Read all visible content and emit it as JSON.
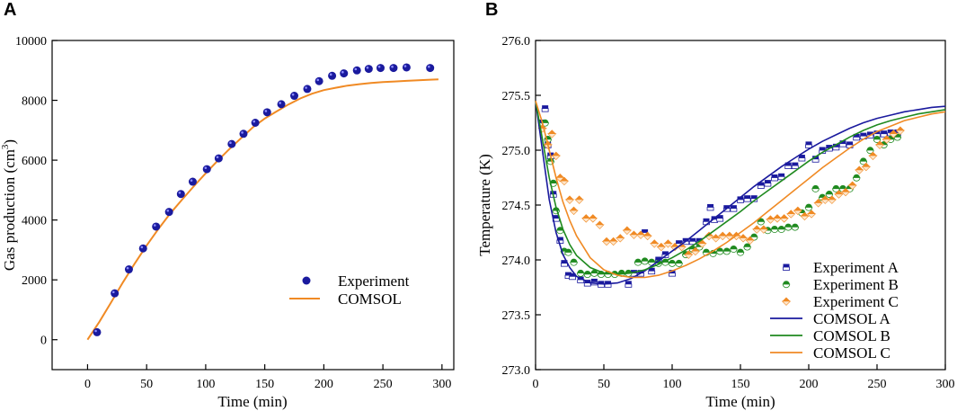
{
  "panels": {
    "A": {
      "letter": "A"
    },
    "B": {
      "letter": "B"
    }
  },
  "chart_data": [
    {
      "id": "A",
      "type": "scatter",
      "title": "",
      "xlabel": "Time (min)",
      "ylabel_main": "Gas production (cm",
      "ylabel_sup": "3",
      "ylabel_end": ")",
      "xlim": [
        -30,
        310
      ],
      "ylim": [
        -1000,
        10000
      ],
      "xticks": [
        0,
        50,
        100,
        150,
        200,
        250,
        300
      ],
      "xtick_labels": [
        "0",
        "50",
        "100",
        "150",
        "200",
        "250",
        "300"
      ],
      "yticks": [
        0,
        2000,
        4000,
        6000,
        8000,
        10000
      ],
      "ytick_labels": [
        "0",
        "2000",
        "4000",
        "6000",
        "8000",
        "10000"
      ],
      "legend_position": "lower-right",
      "series": [
        {
          "name": "Experiment",
          "kind": "points",
          "color": "#1a1a9e",
          "x": [
            8,
            23,
            35,
            47,
            58,
            69,
            79,
            89,
            101,
            111,
            122,
            132,
            142,
            152,
            164,
            175,
            186,
            196,
            207,
            217,
            228,
            238,
            248,
            259,
            270,
            290
          ],
          "y": [
            250,
            1550,
            2350,
            3050,
            3780,
            4270,
            4870,
            5280,
            5700,
            6060,
            6540,
            6880,
            7250,
            7600,
            7870,
            8150,
            8380,
            8640,
            8820,
            8900,
            9000,
            9050,
            9080,
            9080,
            9100,
            9080
          ]
        },
        {
          "name": "COMSOL",
          "kind": "line",
          "color": "#f08a24",
          "x": [
            0,
            10,
            20,
            30,
            40,
            50,
            60,
            70,
            80,
            90,
            100,
            110,
            120,
            130,
            140,
            150,
            160,
            170,
            180,
            190,
            200,
            210,
            220,
            230,
            240,
            250,
            260,
            270,
            280,
            290,
            297
          ],
          "y": [
            0,
            600,
            1250,
            1920,
            2550,
            3150,
            3700,
            4220,
            4680,
            5130,
            5560,
            5980,
            6370,
            6740,
            7100,
            7390,
            7630,
            7860,
            8060,
            8220,
            8340,
            8420,
            8490,
            8540,
            8580,
            8610,
            8630,
            8650,
            8670,
            8690,
            8700
          ]
        }
      ]
    },
    {
      "id": "B",
      "type": "scatter",
      "title": "",
      "xlabel": "Time (min)",
      "ylabel": "Temperature (K)",
      "xlim": [
        0,
        300
      ],
      "ylim": [
        273.0,
        276.0
      ],
      "xticks": [
        0,
        50,
        100,
        150,
        200,
        250,
        300
      ],
      "xtick_labels": [
        "0",
        "50",
        "100",
        "150",
        "200",
        "250",
        "300"
      ],
      "yticks": [
        273.0,
        273.5,
        274.0,
        274.5,
        275.0,
        275.5,
        276.0
      ],
      "ytick_labels": [
        "273.0",
        "273.5",
        "274.0",
        "274.5",
        "275.0",
        "275.5",
        "276.0"
      ],
      "legend_position": "lower-right",
      "series": [
        {
          "name": "Experiment A",
          "kind": "points",
          "marker": "square",
          "color": "#1a1a9e",
          "x": [
            5,
            7,
            9,
            11,
            13,
            15,
            18,
            21,
            24,
            27,
            33,
            38,
            43,
            48,
            53,
            68,
            72,
            77,
            80,
            85,
            90,
            95,
            100,
            105,
            110,
            115,
            120,
            125,
            128,
            131,
            135,
            140,
            145,
            150,
            155,
            160,
            165,
            170,
            175,
            180,
            185,
            190,
            195,
            200,
            205,
            210,
            215,
            220,
            225,
            230,
            235,
            240,
            245,
            250,
            255,
            260,
            265
          ],
          "y": [
            275.25,
            275.38,
            275.05,
            274.95,
            274.6,
            274.38,
            274.18,
            273.97,
            273.86,
            273.85,
            273.82,
            273.79,
            273.8,
            273.78,
            273.78,
            273.78,
            273.88,
            273.88,
            274.25,
            273.9,
            274.0,
            274.05,
            273.88,
            274.15,
            274.17,
            274.17,
            274.17,
            274.35,
            274.48,
            274.37,
            274.38,
            274.47,
            274.47,
            274.55,
            274.56,
            274.56,
            274.68,
            274.7,
            274.75,
            274.76,
            274.86,
            274.86,
            274.93,
            275.05,
            274.92,
            275.0,
            275.02,
            275.03,
            275.06,
            275.05,
            275.12,
            275.13,
            275.14,
            275.15,
            275.15,
            275.16,
            275.16
          ]
        },
        {
          "name": "Experiment B",
          "kind": "points",
          "marker": "circle",
          "color": "#1f8a1f",
          "x": [
            7,
            9,
            11,
            13,
            15,
            18,
            21,
            24,
            28,
            33,
            38,
            43,
            48,
            53,
            58,
            63,
            68,
            75,
            80,
            85,
            90,
            95,
            100,
            105,
            110,
            115,
            120,
            125,
            130,
            135,
            140,
            145,
            150,
            155,
            160,
            165,
            170,
            175,
            180,
            185,
            190,
            195,
            200,
            205,
            210,
            215,
            220,
            225,
            230,
            235,
            240,
            245,
            250,
            255,
            260,
            265
          ],
          "y": [
            275.25,
            275.1,
            274.9,
            274.7,
            274.45,
            274.27,
            274.08,
            274.07,
            273.98,
            273.88,
            273.87,
            273.88,
            273.87,
            273.87,
            273.87,
            273.88,
            273.88,
            273.98,
            273.99,
            273.98,
            273.97,
            273.98,
            273.97,
            273.97,
            274.05,
            274.1,
            274.12,
            274.07,
            274.06,
            274.08,
            274.08,
            274.1,
            274.07,
            274.12,
            274.21,
            274.35,
            274.27,
            274.28,
            274.28,
            274.3,
            274.3,
            274.43,
            274.48,
            274.65,
            274.57,
            274.6,
            274.65,
            274.65,
            274.65,
            274.75,
            274.9,
            275.0,
            275.1,
            275.05,
            275.1,
            275.12
          ]
        },
        {
          "name": "Experiment C",
          "kind": "points",
          "marker": "diamond",
          "color": "#f08a24",
          "x": [
            5,
            9,
            12,
            15,
            18,
            21,
            25,
            28,
            32,
            37,
            42,
            47,
            52,
            57,
            62,
            67,
            72,
            77,
            82,
            87,
            92,
            97,
            102,
            107,
            112,
            117,
            122,
            127,
            132,
            137,
            142,
            147,
            152,
            157,
            162,
            167,
            172,
            177,
            182,
            187,
            192,
            197,
            202,
            207,
            212,
            217,
            222,
            227,
            232,
            237,
            242,
            247,
            252,
            257,
            262,
            267
          ],
          "y": [
            275.2,
            275.05,
            275.15,
            274.95,
            274.75,
            274.72,
            274.55,
            274.45,
            274.55,
            274.38,
            274.38,
            274.32,
            274.17,
            274.17,
            274.2,
            274.27,
            274.23,
            274.23,
            274.22,
            274.15,
            274.12,
            274.15,
            274.12,
            274.12,
            274.05,
            274.08,
            274.15,
            274.22,
            274.2,
            274.22,
            274.22,
            274.22,
            274.2,
            274.18,
            274.28,
            274.28,
            274.37,
            274.38,
            274.38,
            274.42,
            274.45,
            274.4,
            274.42,
            274.52,
            274.55,
            274.55,
            274.6,
            274.62,
            274.68,
            274.82,
            274.85,
            274.95,
            275.05,
            275.1,
            275.15,
            275.18
          ]
        },
        {
          "name": "COMSOL A",
          "kind": "line",
          "color": "#1a1a9e",
          "x": [
            0,
            5,
            10,
            15,
            20,
            25,
            30,
            40,
            50,
            60,
            70,
            80,
            90,
            100,
            110,
            120,
            130,
            140,
            150,
            160,
            170,
            180,
            190,
            200,
            210,
            220,
            230,
            240,
            250,
            260,
            270,
            280,
            290,
            300
          ],
          "y": [
            275.45,
            275.0,
            274.55,
            274.25,
            274.05,
            273.93,
            273.85,
            273.79,
            273.78,
            273.79,
            273.83,
            273.9,
            273.99,
            274.08,
            274.17,
            274.27,
            274.37,
            274.47,
            274.57,
            274.67,
            274.76,
            274.85,
            274.93,
            275.01,
            275.08,
            275.14,
            275.2,
            275.25,
            275.29,
            275.32,
            275.35,
            275.37,
            275.39,
            275.4
          ]
        },
        {
          "name": "COMSOL B",
          "kind": "line",
          "color": "#1f8a1f",
          "x": [
            0,
            5,
            10,
            15,
            20,
            25,
            30,
            40,
            50,
            60,
            70,
            80,
            90,
            100,
            110,
            120,
            130,
            140,
            150,
            160,
            170,
            180,
            190,
            200,
            210,
            220,
            230,
            240,
            250,
            260,
            270,
            280,
            290,
            300
          ],
          "y": [
            275.45,
            275.1,
            274.75,
            274.48,
            274.28,
            274.14,
            274.04,
            273.93,
            273.88,
            273.87,
            273.88,
            273.91,
            273.96,
            274.02,
            274.09,
            274.17,
            274.26,
            274.35,
            274.44,
            274.54,
            274.63,
            274.72,
            274.81,
            274.9,
            274.98,
            275.05,
            275.12,
            275.18,
            275.23,
            275.27,
            275.3,
            275.33,
            275.35,
            275.37
          ]
        },
        {
          "name": "COMSOL C",
          "kind": "line",
          "color": "#f08a24",
          "x": [
            0,
            5,
            10,
            15,
            20,
            25,
            30,
            40,
            50,
            60,
            70,
            80,
            90,
            100,
            110,
            120,
            130,
            140,
            150,
            160,
            170,
            180,
            190,
            200,
            210,
            220,
            230,
            240,
            250,
            260,
            270,
            280,
            290,
            300
          ],
          "y": [
            275.45,
            275.25,
            275.0,
            274.75,
            274.53,
            274.36,
            274.22,
            274.02,
            273.91,
            273.86,
            273.84,
            273.84,
            273.86,
            273.9,
            273.95,
            274.01,
            274.08,
            274.16,
            274.25,
            274.34,
            274.44,
            274.54,
            274.64,
            274.74,
            274.84,
            274.93,
            275.02,
            275.1,
            275.17,
            275.22,
            275.27,
            275.3,
            275.33,
            275.35
          ]
        }
      ]
    }
  ]
}
